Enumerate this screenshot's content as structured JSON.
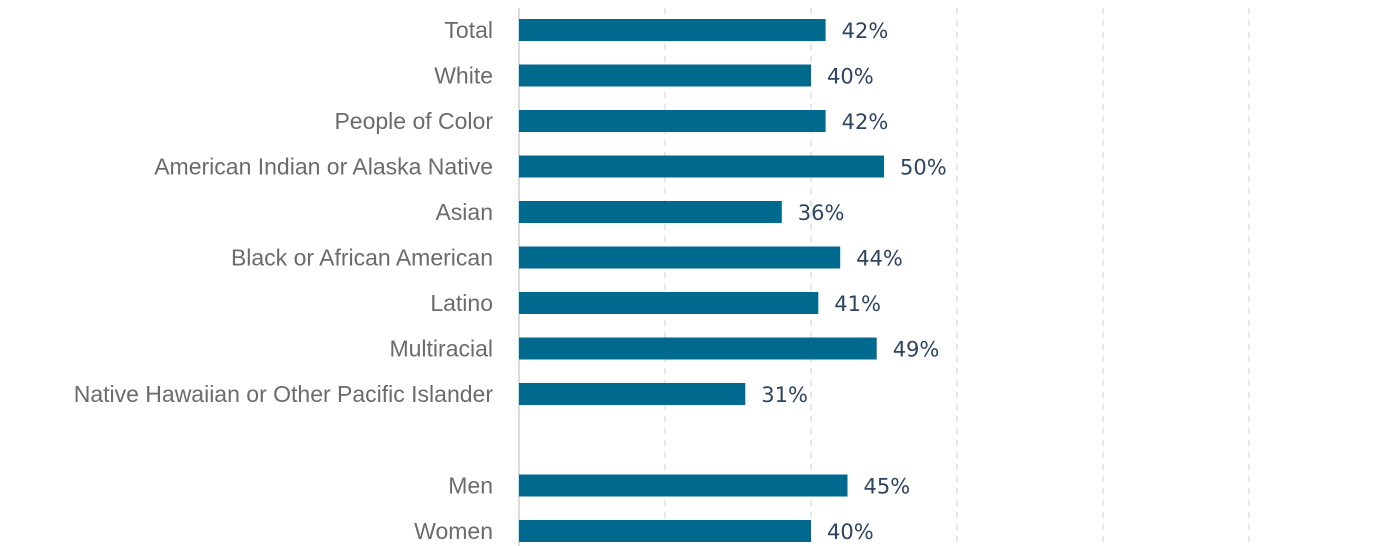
{
  "colors": {
    "bar": "#006a8e",
    "category_text": "#6b6b6b",
    "value_text": "#2e4461",
    "grid": "#cfcfcf"
  },
  "chart_data": {
    "type": "bar",
    "orientation": "horizontal",
    "title": "",
    "xlabel": "",
    "ylabel": "",
    "xlim": [
      0,
      100
    ],
    "grid": true,
    "legend": "none",
    "value_suffix": "%",
    "categories": [
      "Total",
      "White",
      "People of Color",
      "American Indian or Alaska Native",
      "Asian",
      "Black or African American",
      "Latino",
      "Multiracial",
      "Native Hawaiian or Other Pacific Islander",
      "Men",
      "Women"
    ],
    "values": [
      42,
      40,
      42,
      50,
      36,
      44,
      41,
      49,
      31,
      45,
      40
    ],
    "data_labels": [
      "42%",
      "40%",
      "42%",
      "50%",
      "36%",
      "44%",
      "41%",
      "49%",
      "31%",
      "45%",
      "40%"
    ],
    "groups": [
      [
        "Total",
        "White",
        "People of Color",
        "American Indian or Alaska Native",
        "Asian",
        "Black or African American",
        "Latino",
        "Multiracial",
        "Native Hawaiian or Other Pacific Islander"
      ],
      [
        "Men",
        "Women"
      ]
    ]
  }
}
